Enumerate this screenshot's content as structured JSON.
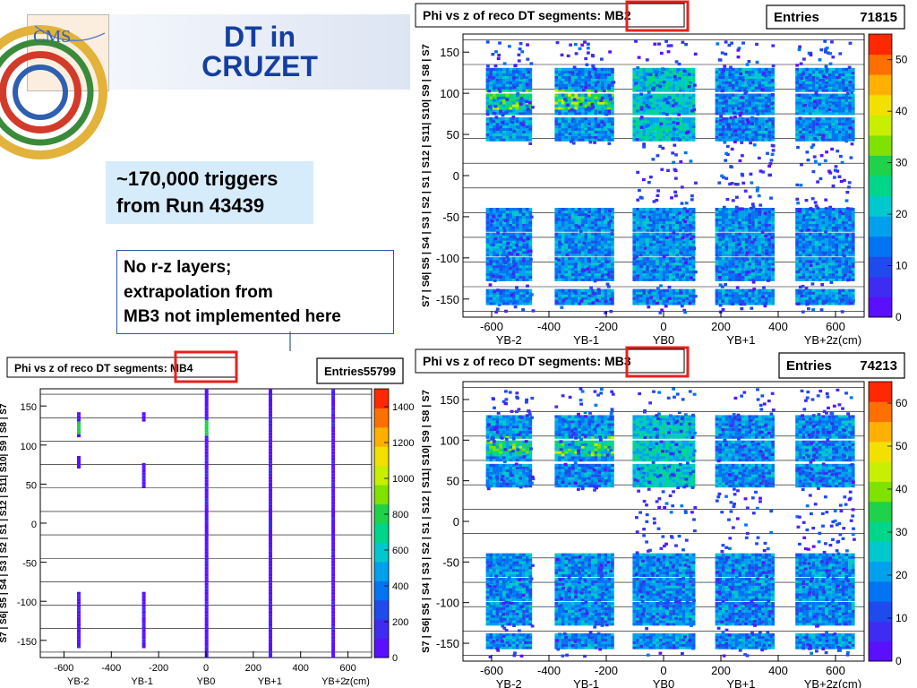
{
  "slide": {
    "logo_text": "CMS",
    "title_line1": "DT in",
    "title_line2": "CRUZET",
    "triggers_line1": "~170,000 triggers",
    "triggers_line2": "from Run 43439",
    "note_line1": "No r-z layers;",
    "note_line2": "extrapolation from",
    "note_line3": "MB3 not implemented here"
  },
  "colors": {
    "title": "#143fa0",
    "highlight_box": "#e8201c",
    "arrow": "#2d59a8",
    "trigger_box_bg": "#d7ecfb"
  },
  "chart_data": [
    {
      "id": "MB2",
      "type": "heatmap",
      "title": "Phi vs z of reco DT segments: MB2",
      "highlighted_title_part": "MB2",
      "entries_label": "Entries",
      "entries_value": "71815",
      "xlabel": "z(cm)",
      "xlim": [
        -700,
        700
      ],
      "ylim": [
        -172,
        172
      ],
      "x_ticks": [
        "-600",
        "-400",
        "-200",
        "0",
        "200",
        "400",
        "600"
      ],
      "y_ticks": [
        "150",
        "100",
        "50",
        "0",
        "-50",
        "-100",
        "-150"
      ],
      "wheel_labels": [
        "YB-2",
        "YB-1",
        "YB0",
        "YB+1",
        "YB+2"
      ],
      "sector_labels": "S7 | S6| S5 | S4 | S3 | S2 | S1 | S12 | S11| S10| S9 | S8 | S7",
      "colorbar_ticks": [
        "50",
        "40",
        "30",
        "20",
        "10",
        "0"
      ],
      "z_max": 55
    },
    {
      "id": "MB3",
      "type": "heatmap",
      "title": "Phi vs z of reco DT segments: MB3",
      "highlighted_title_part": "MB3",
      "entries_label": "Entries",
      "entries_value": "74213",
      "xlabel": "z(cm)",
      "xlim": [
        -700,
        700
      ],
      "ylim": [
        -172,
        172
      ],
      "x_ticks": [
        "-600",
        "-400",
        "-200",
        "0",
        "200",
        "400",
        "600"
      ],
      "y_ticks": [
        "150",
        "100",
        "50",
        "0",
        "-50",
        "-100",
        "-150"
      ],
      "wheel_labels": [
        "YB-2",
        "YB-1",
        "YB0",
        "YB+1",
        "YB+2"
      ],
      "sector_labels": "S7 | S6| S5 | S4 | S3 | S2 | S1 | S12 | S11| S10| S9 | S8 | S7",
      "colorbar_ticks": [
        "60",
        "50",
        "40",
        "30",
        "20",
        "10",
        "0"
      ],
      "z_max": 65
    },
    {
      "id": "MB4",
      "type": "heatmap",
      "title": "Phi vs z of reco DT segments: MB4",
      "highlighted_title_part": "MB4",
      "entries_label": "Entries",
      "entries_value": "55799",
      "xlabel": "z(cm)",
      "xlim": [
        -700,
        700
      ],
      "ylim": [
        -172,
        172
      ],
      "x_ticks": [
        "-600",
        "-400",
        "-200",
        "0",
        "200",
        "400",
        "600"
      ],
      "y_ticks": [
        "150",
        "100",
        "50",
        "0",
        "-50",
        "-100",
        "-150"
      ],
      "wheel_labels": [
        "YB-2",
        "YB-1",
        "YB0",
        "YB+1",
        "YB+2"
      ],
      "sector_labels": "S7 | S6| S5 | S4 | S3 | S2 | S1 | S12 | S11| S10| S9 | S8 | S7",
      "colorbar_ticks": [
        "1400",
        "1200",
        "1000",
        "800",
        "600",
        "400",
        "200",
        "0"
      ],
      "z_max": 1500
    }
  ]
}
